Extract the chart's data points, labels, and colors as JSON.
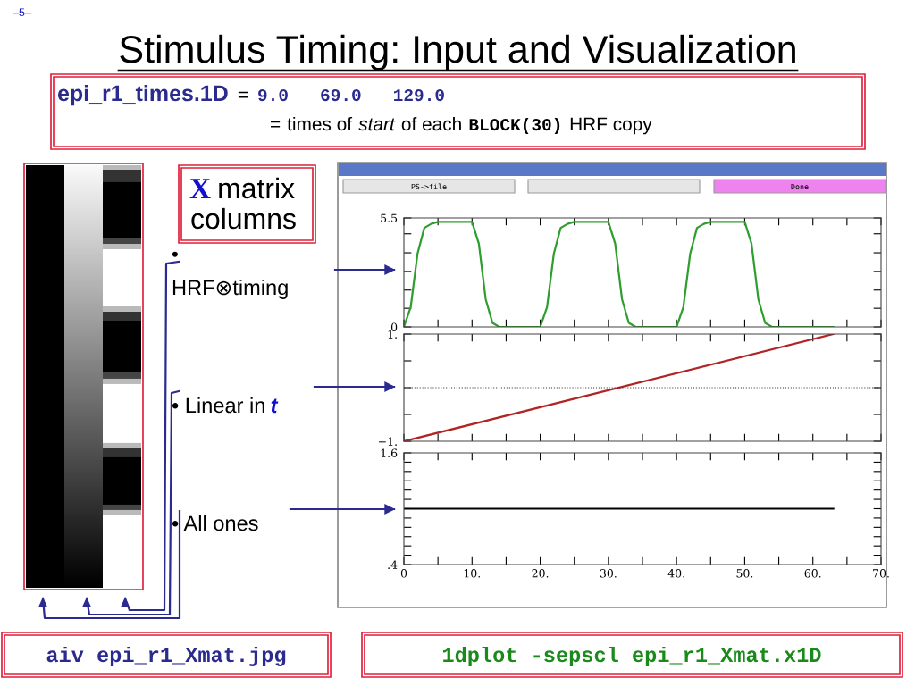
{
  "chart_data": [
    {
      "type": "line",
      "title": "Stimulus Timing: Input and Visualization",
      "annotations": [
        "–5–",
        "epi_r1_times.1D",
        "=",
        "9.0   69.0   129.0",
        "=",
        "times of",
        "start",
        "of each",
        "BLOCK(30)",
        "HRF copy",
        "X",
        "matrix",
        "columns",
        "•",
        "HRF⊗timing",
        "• Linear in",
        "t",
        "• All ones",
        "aiv epi_r1_Xmat.jpg",
        "1dplot -sepscl epi_r1_Xmat.x1D",
        "PS->file",
        "Done"
      ],
      "x": [
        0,
        1,
        2,
        3,
        4,
        5,
        10,
        11,
        12,
        13,
        14,
        20,
        21,
        22,
        23,
        24,
        25,
        30,
        31,
        32,
        33,
        34,
        40,
        41,
        42,
        43,
        44,
        45,
        50,
        51,
        52,
        53,
        54,
        63
      ],
      "series": [
        {
          "color": "#2e9e2e",
          "values": [
            0,
            1.0,
            3.7,
            5.0,
            5.2,
            5.3,
            5.3,
            4.2,
            1.4,
            0.2,
            0,
            0,
            1.0,
            3.7,
            5.0,
            5.2,
            5.3,
            5.3,
            4.2,
            1.4,
            0.2,
            0,
            0,
            1.0,
            3.7,
            5.0,
            5.2,
            5.3,
            5.3,
            4.2,
            1.4,
            0.2,
            0,
            0
          ]
        }
      ],
      "xlim": [
        0,
        70
      ],
      "ylim": [
        0,
        5.5
      ],
      "xticks": [
        0,
        {
          "value": 5,
          "label": null
        },
        10,
        {
          "value": 15,
          "label": null
        },
        20,
        {
          "value": 25,
          "label": null
        },
        30,
        {
          "value": 35,
          "label": null
        },
        40,
        {
          "value": 45,
          "label": null
        },
        50,
        {
          "value": 55,
          "label": null
        },
        60,
        {
          "value": 65,
          "label": null
        },
        70
      ],
      "yticks": [
        0,
        {
          "value": 0.94,
          "label": null
        },
        {
          "value": 1.86,
          "label": null
        },
        {
          "value": 2.8,
          "label": null
        },
        {
          "value": 3.74,
          "label": null
        },
        {
          "value": 4.7,
          "label": null
        },
        5.5
      ],
      "tick_labels": "y",
      "grid": false,
      "legend": false
    },
    {
      "type": "line",
      "x": [
        0,
        63
      ],
      "series": [
        {
          "color": "#b02424",
          "values": [
            -1,
            1
          ]
        }
      ],
      "xlim": [
        0,
        70
      ],
      "ylim": [
        -1,
        1
      ],
      "xticks": [
        0,
        {
          "value": 5,
          "label": null
        },
        10,
        {
          "value": 15,
          "label": null
        },
        20,
        {
          "value": 25,
          "label": null
        },
        30,
        {
          "value": 35,
          "label": null
        },
        40,
        {
          "value": 45,
          "label": null
        },
        50,
        {
          "value": 55,
          "label": null
        },
        60,
        {
          "value": 65,
          "label": null
        },
        70
      ],
      "yticks": [
        {
          "value": -1,
          "label": "−1."
        },
        {
          "value": -0.5,
          "label": null
        },
        {
          "value": 0,
          "label": null
        },
        {
          "value": 0.5,
          "label": null
        },
        {
          "value": 1,
          "label": "1."
        }
      ],
      "ref_lines": [
        {
          "axis": "y",
          "value": 0,
          "color": "#333333",
          "line_style": "dotted"
        }
      ],
      "tick_labels": "y",
      "grid": false,
      "legend": false
    },
    {
      "type": "line",
      "x": [
        0,
        63
      ],
      "series": [
        {
          "color": "#000000",
          "values": [
            1,
            1
          ]
        }
      ],
      "xlim": [
        0,
        70
      ],
      "ylim": [
        0.4,
        1.6
      ],
      "xticks": [
        0,
        {
          "value": 5,
          "label": null
        },
        {
          "value": 10,
          "label": "10."
        },
        {
          "value": 15,
          "label": null
        },
        {
          "value": 20,
          "label": "20."
        },
        {
          "value": 25,
          "label": null
        },
        {
          "value": 30,
          "label": "30."
        },
        {
          "value": 35,
          "label": null
        },
        {
          "value": 40,
          "label": "40."
        },
        {
          "value": 45,
          "label": null
        },
        {
          "value": 50,
          "label": "50."
        },
        {
          "value": 55,
          "label": null
        },
        {
          "value": 60,
          "label": "60."
        },
        {
          "value": 65,
          "label": null
        },
        {
          "value": 70,
          "label": "70."
        }
      ],
      "yticks": [
        {
          "value": 0.4,
          "label": ".4"
        },
        {
          "value": 0.5,
          "label": null
        },
        {
          "value": 0.6,
          "label": null
        },
        {
          "value": 0.7,
          "label": null
        },
        {
          "value": 0.8,
          "label": null
        },
        {
          "value": 0.9,
          "label": null
        },
        {
          "value": 1.0,
          "label": null
        },
        {
          "value": 1.1,
          "label": null
        },
        {
          "value": 1.2,
          "label": null
        },
        {
          "value": 1.3,
          "label": null
        },
        {
          "value": 1.4,
          "label": null
        },
        {
          "value": 1.5,
          "label": null
        },
        {
          "value": 1.6,
          "label": "1.6"
        }
      ],
      "grid": false,
      "legend": false
    }
  ]
}
